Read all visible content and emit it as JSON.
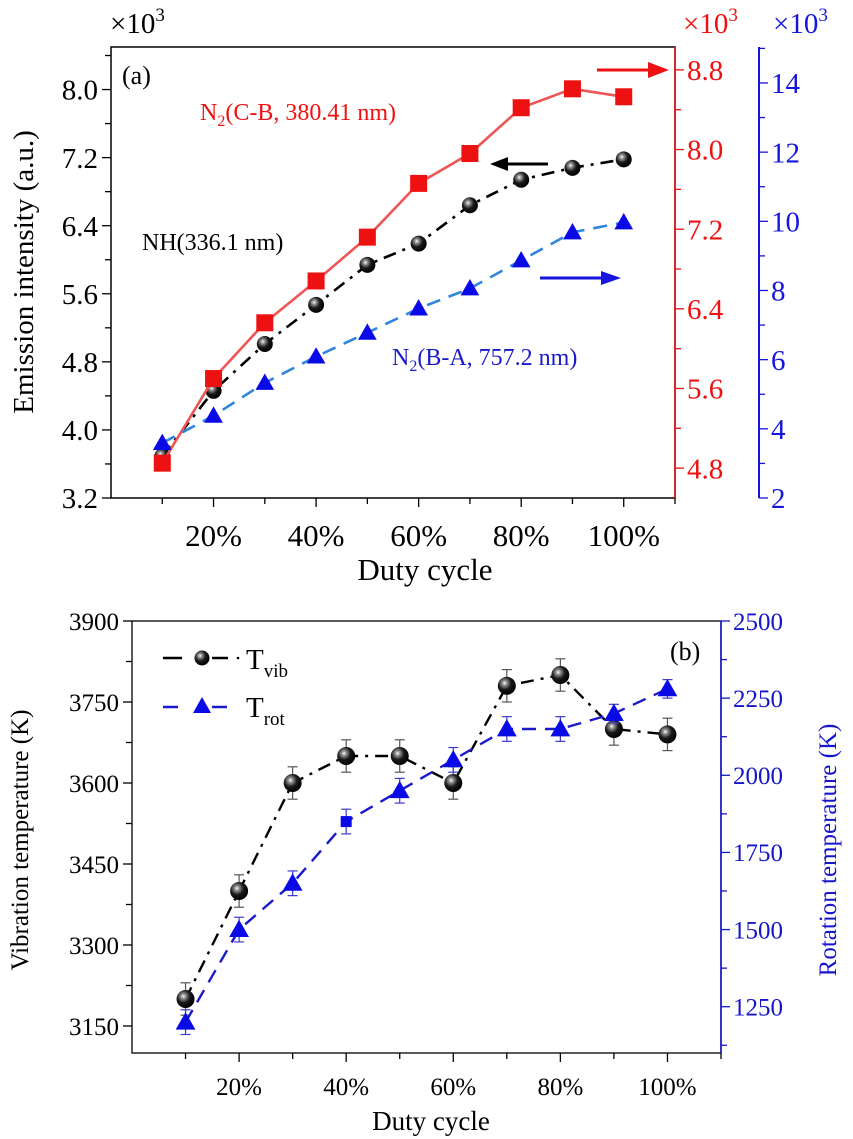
{
  "chart_data": [
    {
      "panel_label": "(a)",
      "type": "line",
      "xlabel": "Duty cycle",
      "x": [
        10,
        20,
        30,
        40,
        50,
        60,
        70,
        80,
        90,
        100
      ],
      "xlim": [
        0,
        110
      ],
      "x_ticks": [
        20,
        40,
        60,
        80,
        100
      ],
      "x_tick_labels": [
        "20%",
        "40%",
        "60%",
        "80%",
        "100%"
      ],
      "axes": {
        "left": {
          "label": "Emission intensity (a.u.)",
          "multiplier": "×10",
          "exponent": "3",
          "ylim": [
            3.2,
            8.5
          ],
          "ticks": [
            3.2,
            4.0,
            4.8,
            5.6,
            6.4,
            7.2,
            8.0
          ],
          "tick_labels": [
            "3.2",
            "4.0",
            "4.8",
            "5.6",
            "6.4",
            "7.2",
            "8.0"
          ],
          "color": "#000000"
        },
        "right1": {
          "label": "",
          "multiplier": "×10",
          "exponent": "3",
          "ylim": [
            4.5,
            9.03
          ],
          "ticks": [
            4.8,
            5.6,
            6.4,
            7.2,
            8.0,
            8.8
          ],
          "tick_labels": [
            "4.8",
            "5.6",
            "6.4",
            "7.2",
            "8.0",
            "8.8"
          ],
          "color": "#ee1111"
        },
        "right2": {
          "label": "",
          "multiplier": "×10",
          "exponent": "3",
          "ylim": [
            2,
            15.04
          ],
          "ticks": [
            2,
            4,
            6,
            8,
            10,
            12,
            14
          ],
          "tick_labels": [
            "2",
            "4",
            "6",
            "8",
            "10",
            "12",
            "14"
          ],
          "color": "#1515dd"
        }
      },
      "series": [
        {
          "name": "NH(336.1 nm)",
          "axis": "left",
          "marker": "sphere",
          "line": "dashdot",
          "color": "#000000",
          "values": [
            3.69,
            4.46,
            5.01,
            5.47,
            5.94,
            6.19,
            6.64,
            6.94,
            7.08,
            7.18
          ]
        },
        {
          "name": "N2(C-B, 380.41 nm)",
          "label_main": "N",
          "label_sub": "2",
          "label_rest": "(C-B, 380.41 nm)",
          "axis": "right1",
          "marker": "square",
          "line": "solid",
          "color": "#ee1111",
          "line_color": "#ee5555",
          "values": [
            4.85,
            5.7,
            6.26,
            6.68,
            7.12,
            7.66,
            7.96,
            8.42,
            8.61,
            8.53
          ]
        },
        {
          "name": "N2(B-A, 757.2 nm)",
          "label_main": "N",
          "label_sub": "2",
          "label_rest": "(B-A, 757.2 nm)",
          "axis": "right2",
          "marker": "triangle",
          "line": "dashed",
          "color": "#0a0ae6",
          "line_color": "#2f86dc",
          "values": [
            3.59,
            4.38,
            5.33,
            6.09,
            6.78,
            7.48,
            8.06,
            8.87,
            9.68,
            9.97
          ]
        }
      ],
      "annotations": [
        {
          "text": "NH(336.1 nm)",
          "series": 0
        },
        {
          "arrow": "left",
          "series": 0,
          "meaning": "left axis"
        },
        {
          "arrow": "right",
          "series": 1,
          "meaning": "red right axis"
        },
        {
          "arrow": "right",
          "series": 2,
          "meaning": "blue right axis"
        }
      ],
      "grid": false
    },
    {
      "panel_label": "(b)",
      "type": "line",
      "xlabel": "Duty cycle",
      "x": [
        10,
        20,
        30,
        40,
        50,
        60,
        70,
        80,
        90,
        100
      ],
      "xlim": [
        0,
        110
      ],
      "x_ticks": [
        20,
        40,
        60,
        80,
        100
      ],
      "x_tick_labels": [
        "20%",
        "40%",
        "60%",
        "80%",
        "100%"
      ],
      "axes": {
        "left": {
          "label": "Vibration temperature (K)",
          "ylim": [
            3100,
            3900
          ],
          "ticks": [
            3150,
            3300,
            3450,
            3600,
            3750,
            3900
          ],
          "tick_labels": [
            "3150",
            "3300",
            "3450",
            "3600",
            "3750",
            "3900"
          ],
          "color": "#000000"
        },
        "right": {
          "label": "Rotation temperature (K)",
          "ylim": [
            1100,
            2500
          ],
          "ticks": [
            1250,
            1500,
            1750,
            2000,
            2250,
            2500
          ],
          "tick_labels": [
            "1250",
            "1500",
            "1750",
            "2000",
            "2250",
            "2500"
          ],
          "color": "#1515cc"
        }
      },
      "series": [
        {
          "name": "T_vib",
          "legend_main": "T",
          "legend_sub": "vib",
          "axis": "left",
          "marker": "sphere",
          "line": "dashdot",
          "color": "#000000",
          "values": [
            3200,
            3400,
            3600,
            3650,
            3650,
            3600,
            3780,
            3800,
            3700,
            3690
          ],
          "errors": [
            30,
            30,
            30,
            30,
            30,
            30,
            30,
            30,
            30,
            30
          ]
        },
        {
          "name": "T_rot",
          "legend_main": "T",
          "legend_sub": "rot",
          "axis": "right",
          "marker": "triangle",
          "line": "dashed",
          "color": "#0a0ae6",
          "line_color": "#1a1acc",
          "values": [
            1200,
            1500,
            1650,
            1850,
            1950,
            2050,
            2150,
            2150,
            2200,
            2280
          ],
          "errors": [
            40,
            40,
            40,
            40,
            40,
            40,
            40,
            40,
            30,
            30
          ]
        }
      ],
      "legend": "top-left",
      "grid": false
    }
  ]
}
